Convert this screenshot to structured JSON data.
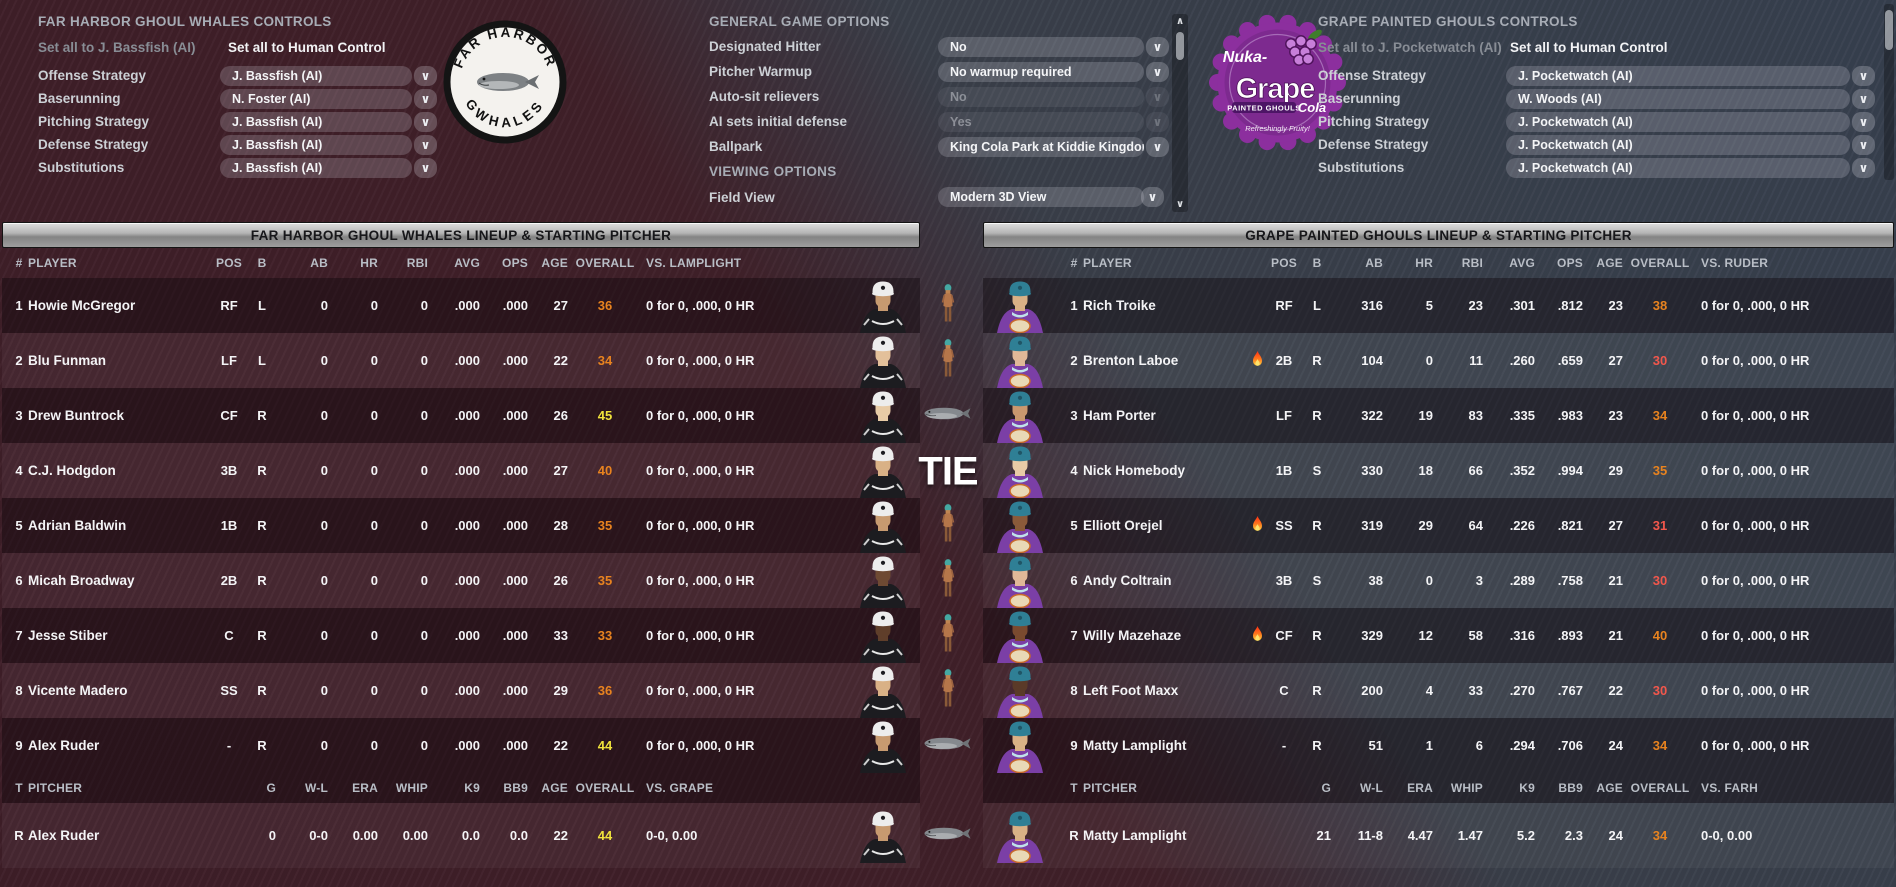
{
  "colors": {
    "overall_orange": "#e8831f",
    "overall_yellow": "#f0e23c",
    "overall_red": "#f2574c",
    "left_accent": "#3e1e28",
    "right_accent": "#37404f"
  },
  "icons": {
    "caret": "∨",
    "scroll_up": "∧",
    "scroll_down": "∨",
    "fire": "flame-icon",
    "ghoul": "ghoul-figure-icon",
    "whale": "whale-icon"
  },
  "left_logo": {
    "top": "FAR HARBOR",
    "bottom": "GWHALES"
  },
  "right_logo": {
    "script": "Nuka-",
    "main": "Grape",
    "sub": "PAINTED GHOULS",
    "cola": "Cola",
    "tagline": "Refreshingly Fruity!"
  },
  "left_controls": {
    "title": "FAR HARBOR GHOUL WHALES CONTROLS",
    "set_ai_label": "Set all to J. Bassfish (AI)",
    "set_human_label": "Set all to Human Control",
    "rows": [
      {
        "label": "Offense Strategy",
        "value": "J. Bassfish (AI)",
        "enabled": true
      },
      {
        "label": "Baserunning",
        "value": "N. Foster (AI)",
        "enabled": true
      },
      {
        "label": "Pitching Strategy",
        "value": "J. Bassfish (AI)",
        "enabled": true
      },
      {
        "label": "Defense Strategy",
        "value": "J. Bassfish (AI)",
        "enabled": true
      },
      {
        "label": "Substitutions",
        "value": "J. Bassfish (AI)",
        "enabled": true
      }
    ]
  },
  "game_options": {
    "title": "GENERAL GAME OPTIONS",
    "rows": [
      {
        "label": "Designated Hitter",
        "value": "No",
        "enabled": true
      },
      {
        "label": "Pitcher Warmup",
        "value": "No warmup required",
        "enabled": true
      },
      {
        "label": "Auto-sit relievers",
        "value": "No",
        "enabled": false
      },
      {
        "label": "AI sets initial defense",
        "value": "Yes",
        "enabled": false
      },
      {
        "label": "Ballpark",
        "value": "King Cola Park at Kiddie Kingdom",
        "enabled": true
      }
    ],
    "viewing_title": "VIEWING OPTIONS",
    "field_view": {
      "label": "Field View",
      "value": "Modern 3D View",
      "enabled": true
    }
  },
  "right_controls": {
    "title": "GRAPE PAINTED GHOULS CONTROLS",
    "set_ai_label": "Set all to J. Pocketwatch (AI)",
    "set_human_label": "Set all to Human Control",
    "rows": [
      {
        "label": "Offense Strategy",
        "value": "J. Pocketwatch (AI)",
        "enabled": true
      },
      {
        "label": "Baserunning",
        "value": "W. Woods (AI)",
        "enabled": true
      },
      {
        "label": "Pitching Strategy",
        "value": "J. Pocketwatch (AI)",
        "enabled": true
      },
      {
        "label": "Defense Strategy",
        "value": "J. Pocketwatch (AI)",
        "enabled": true
      },
      {
        "label": "Substitutions",
        "value": "J. Pocketwatch (AI)",
        "enabled": true
      }
    ]
  },
  "center": {
    "tie": "TIE"
  },
  "left_team": {
    "table_title": "FAR HARBOR GHOUL WHALES LINEUP & STARTING PITCHER",
    "columns": [
      "#",
      "PLAYER",
      "POS",
      "B",
      "AB",
      "HR",
      "RBI",
      "AVG",
      "OPS",
      "AGE",
      "OVERALL",
      "VS. LAMPLIGHT"
    ],
    "players": [
      {
        "num": "1",
        "name": "Howie McGregor",
        "fire": false,
        "pos": "RF",
        "b": "L",
        "ab": "0",
        "hr": "0",
        "rbi": "0",
        "avg": ".000",
        "ops": ".000",
        "age": "27",
        "overall": "36",
        "overall_color": "orange",
        "vs": "0 for 0, .000, 0 HR",
        "icon": "ghoul",
        "skin": "#c79a70"
      },
      {
        "num": "2",
        "name": "Blu Funman",
        "fire": false,
        "pos": "LF",
        "b": "L",
        "ab": "0",
        "hr": "0",
        "rbi": "0",
        "avg": ".000",
        "ops": ".000",
        "age": "22",
        "overall": "34",
        "overall_color": "orange",
        "vs": "0 for 0, .000, 0 HR",
        "icon": "ghoul",
        "skin": "#e3c09a"
      },
      {
        "num": "3",
        "name": "Drew Buntrock",
        "fire": false,
        "pos": "CF",
        "b": "R",
        "ab": "0",
        "hr": "0",
        "rbi": "0",
        "avg": ".000",
        "ops": ".000",
        "age": "26",
        "overall": "45",
        "overall_color": "yellow",
        "vs": "0 for 0, .000, 0 HR",
        "icon": "whale",
        "skin": "#e8cba6"
      },
      {
        "num": "4",
        "name": "C.J. Hodgdon",
        "fire": false,
        "pos": "3B",
        "b": "R",
        "ab": "0",
        "hr": "0",
        "rbi": "0",
        "avg": ".000",
        "ops": ".000",
        "age": "27",
        "overall": "40",
        "overall_color": "orange",
        "vs": "0 for 0, .000, 0 HR",
        "icon": "none",
        "skin": "#d9b186"
      },
      {
        "num": "5",
        "name": "Adrian Baldwin",
        "fire": false,
        "pos": "1B",
        "b": "R",
        "ab": "0",
        "hr": "0",
        "rbi": "0",
        "avg": ".000",
        "ops": ".000",
        "age": "28",
        "overall": "35",
        "overall_color": "orange",
        "vs": "0 for 0, .000, 0 HR",
        "icon": "ghoul",
        "skin": "#c79a70"
      },
      {
        "num": "6",
        "name": "Micah Broadway",
        "fire": false,
        "pos": "2B",
        "b": "R",
        "ab": "0",
        "hr": "0",
        "rbi": "0",
        "avg": ".000",
        "ops": ".000",
        "age": "26",
        "overall": "35",
        "overall_color": "orange",
        "vs": "0 for 0, .000, 0 HR",
        "icon": "ghoul",
        "skin": "#6e4a33"
      },
      {
        "num": "7",
        "name": "Jesse Stiber",
        "fire": false,
        "pos": "C",
        "b": "R",
        "ab": "0",
        "hr": "0",
        "rbi": "0",
        "avg": ".000",
        "ops": ".000",
        "age": "33",
        "overall": "33",
        "overall_color": "orange",
        "vs": "0 for 0, .000, 0 HR",
        "icon": "ghoul",
        "skin": "#5f3e2a"
      },
      {
        "num": "8",
        "name": "Vicente Madero",
        "fire": false,
        "pos": "SS",
        "b": "R",
        "ab": "0",
        "hr": "0",
        "rbi": "0",
        "avg": ".000",
        "ops": ".000",
        "age": "29",
        "overall": "36",
        "overall_color": "orange",
        "vs": "0 for 0, .000, 0 HR",
        "icon": "ghoul",
        "skin": "#d9b186"
      },
      {
        "num": "9",
        "name": "Alex Ruder",
        "fire": false,
        "pos": "-",
        "b": "R",
        "ab": "0",
        "hr": "0",
        "rbi": "0",
        "avg": ".000",
        "ops": ".000",
        "age": "22",
        "overall": "44",
        "overall_color": "yellow",
        "vs": "0 for 0, .000, 0 HR",
        "icon": "whale",
        "skin": "#c79a70"
      }
    ],
    "pitcher_columns": [
      "T",
      "PITCHER",
      "G",
      "W-L",
      "ERA",
      "WHIP",
      "K9",
      "BB9",
      "AGE",
      "OVERALL",
      "VS. GRAPE"
    ],
    "pitcher": {
      "t": "R",
      "name": "Alex Ruder",
      "g": "0",
      "wl": "0-0",
      "era": "0.00",
      "whip": "0.00",
      "k9": "0.0",
      "bb9": "0.0",
      "age": "22",
      "overall": "44",
      "overall_color": "yellow",
      "vs": "0-0, 0.00",
      "icon": "whale",
      "skin": "#c79a70"
    }
  },
  "right_team": {
    "table_title": "GRAPE PAINTED GHOULS LINEUP & STARTING PITCHER",
    "columns": [
      "#",
      "PLAYER",
      "POS",
      "B",
      "AB",
      "HR",
      "RBI",
      "AVG",
      "OPS",
      "AGE",
      "OVERALL",
      "VS. RUDER"
    ],
    "players": [
      {
        "num": "1",
        "name": "Rich Troike",
        "fire": false,
        "pos": "RF",
        "b": "L",
        "ab": "316",
        "hr": "5",
        "rbi": "23",
        "avg": ".301",
        "ops": ".812",
        "age": "23",
        "overall": "38",
        "overall_color": "orange",
        "vs": "0 for 0, .000, 0 HR",
        "skin": "#d9b186"
      },
      {
        "num": "2",
        "name": "Brenton Laboe",
        "fire": true,
        "pos": "2B",
        "b": "R",
        "ab": "104",
        "hr": "0",
        "rbi": "11",
        "avg": ".260",
        "ops": ".659",
        "age": "27",
        "overall": "30",
        "overall_color": "red",
        "vs": "0 for 0, .000, 0 HR",
        "skin": "#e0b898"
      },
      {
        "num": "3",
        "name": "Ham Porter",
        "fire": false,
        "pos": "LF",
        "b": "R",
        "ab": "322",
        "hr": "19",
        "rbi": "83",
        "avg": ".335",
        "ops": ".983",
        "age": "23",
        "overall": "34",
        "overall_color": "orange",
        "vs": "0 for 0, .000, 0 HR",
        "skin": "#c9986f"
      },
      {
        "num": "4",
        "name": "Nick Homebody",
        "fire": false,
        "pos": "1B",
        "b": "S",
        "ab": "330",
        "hr": "18",
        "rbi": "66",
        "avg": ".352",
        "ops": ".994",
        "age": "29",
        "overall": "35",
        "overall_color": "orange",
        "vs": "0 for 0, .000, 0 HR",
        "skin": "#e8cba6"
      },
      {
        "num": "5",
        "name": "Elliott Orejel",
        "fire": true,
        "pos": "SS",
        "b": "R",
        "ab": "319",
        "hr": "29",
        "rbi": "64",
        "avg": ".226",
        "ops": ".821",
        "age": "27",
        "overall": "31",
        "overall_color": "red",
        "vs": "0 for 0, .000, 0 HR",
        "skin": "#8a5a3a"
      },
      {
        "num": "6",
        "name": "Andy Coltrain",
        "fire": false,
        "pos": "3B",
        "b": "S",
        "ab": "38",
        "hr": "0",
        "rbi": "3",
        "avg": ".289",
        "ops": ".758",
        "age": "21",
        "overall": "30",
        "overall_color": "red",
        "vs": "0 for 0, .000, 0 HR",
        "skin": "#e0b898"
      },
      {
        "num": "7",
        "name": "Willy Mazehaze",
        "fire": true,
        "pos": "CF",
        "b": "R",
        "ab": "329",
        "hr": "12",
        "rbi": "58",
        "avg": ".316",
        "ops": ".893",
        "age": "21",
        "overall": "40",
        "overall_color": "orange",
        "vs": "0 for 0, .000, 0 HR",
        "skin": "#7a4a2f"
      },
      {
        "num": "8",
        "name": "Left Foot Maxx",
        "fire": false,
        "pos": "C",
        "b": "R",
        "ab": "200",
        "hr": "4",
        "rbi": "33",
        "avg": ".270",
        "ops": ".767",
        "age": "22",
        "overall": "30",
        "overall_color": "red",
        "vs": "0 for 0, .000, 0 HR",
        "skin": "#5a3a28"
      },
      {
        "num": "9",
        "name": "Matty Lamplight",
        "fire": false,
        "pos": "-",
        "b": "R",
        "ab": "51",
        "hr": "1",
        "rbi": "6",
        "avg": ".294",
        "ops": ".706",
        "age": "24",
        "overall": "34",
        "overall_color": "orange",
        "vs": "0 for 0, .000, 0 HR",
        "skin": "#d9b186"
      }
    ],
    "pitcher_columns": [
      "T",
      "PITCHER",
      "G",
      "W-L",
      "ERA",
      "WHIP",
      "K9",
      "BB9",
      "AGE",
      "OVERALL",
      "VS. FARH"
    ],
    "pitcher": {
      "t": "R",
      "name": "Matty Lamplight",
      "g": "21",
      "wl": "11-8",
      "era": "4.47",
      "whip": "1.47",
      "k9": "5.2",
      "bb9": "2.3",
      "age": "24",
      "overall": "34",
      "overall_color": "orange",
      "vs": "0-0, 0.00",
      "skin": "#d9b186"
    }
  }
}
